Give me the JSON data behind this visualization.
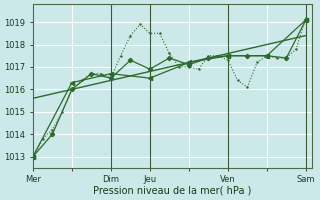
{
  "bg_color": "#cce8e8",
  "grid_color": "#ffffff",
  "line_color": "#2d6a2d",
  "text_color": "#1a3a1a",
  "xlabel": "Pression niveau de la mer( hPa )",
  "ylim": [
    1012.5,
    1019.8
  ],
  "yticks": [
    1013,
    1014,
    1015,
    1016,
    1017,
    1018,
    1019
  ],
  "xtick_labels": [
    "Mer",
    "",
    "Dim",
    "Jeu",
    "",
    "Ven",
    "",
    "Sam"
  ],
  "xtick_positions": [
    0,
    24,
    48,
    72,
    96,
    120,
    144,
    168
  ],
  "total_hours": 172,
  "vline_positions": [
    48,
    72,
    120,
    168
  ],
  "series1_jagged": {
    "x": [
      0,
      6,
      12,
      18,
      24,
      30,
      36,
      42,
      48,
      54,
      60,
      66,
      72,
      78,
      84,
      90,
      96,
      102,
      108,
      114,
      120,
      126,
      132,
      138,
      144,
      150,
      156,
      162,
      168
    ],
    "y": [
      1013.0,
      1013.8,
      1014.2,
      1015.0,
      1016.0,
      1016.4,
      1016.7,
      1016.7,
      1016.5,
      1017.5,
      1018.4,
      1018.9,
      1018.5,
      1018.5,
      1017.6,
      1017.0,
      1017.0,
      1016.9,
      1017.5,
      1017.5,
      1017.3,
      1016.4,
      1016.1,
      1017.2,
      1017.5,
      1017.4,
      1017.4,
      1017.8,
      1019.2
    ]
  },
  "series2_smooth": {
    "x": [
      0,
      12,
      24,
      36,
      48,
      60,
      72,
      84,
      96,
      108,
      120,
      132,
      144,
      156,
      168
    ],
    "y": [
      1013.0,
      1014.0,
      1016.0,
      1016.7,
      1016.5,
      1017.3,
      1016.9,
      1017.4,
      1017.1,
      1017.4,
      1017.5,
      1017.5,
      1017.5,
      1017.4,
      1019.1
    ]
  },
  "series3_coarse": {
    "x": [
      0,
      24,
      48,
      72,
      96,
      120,
      144,
      168
    ],
    "y": [
      1013.0,
      1016.3,
      1016.7,
      1016.5,
      1017.2,
      1017.5,
      1017.5,
      1019.1
    ]
  },
  "series4_linear": {
    "x": [
      0,
      168
    ],
    "y": [
      1015.6,
      1018.4
    ]
  }
}
